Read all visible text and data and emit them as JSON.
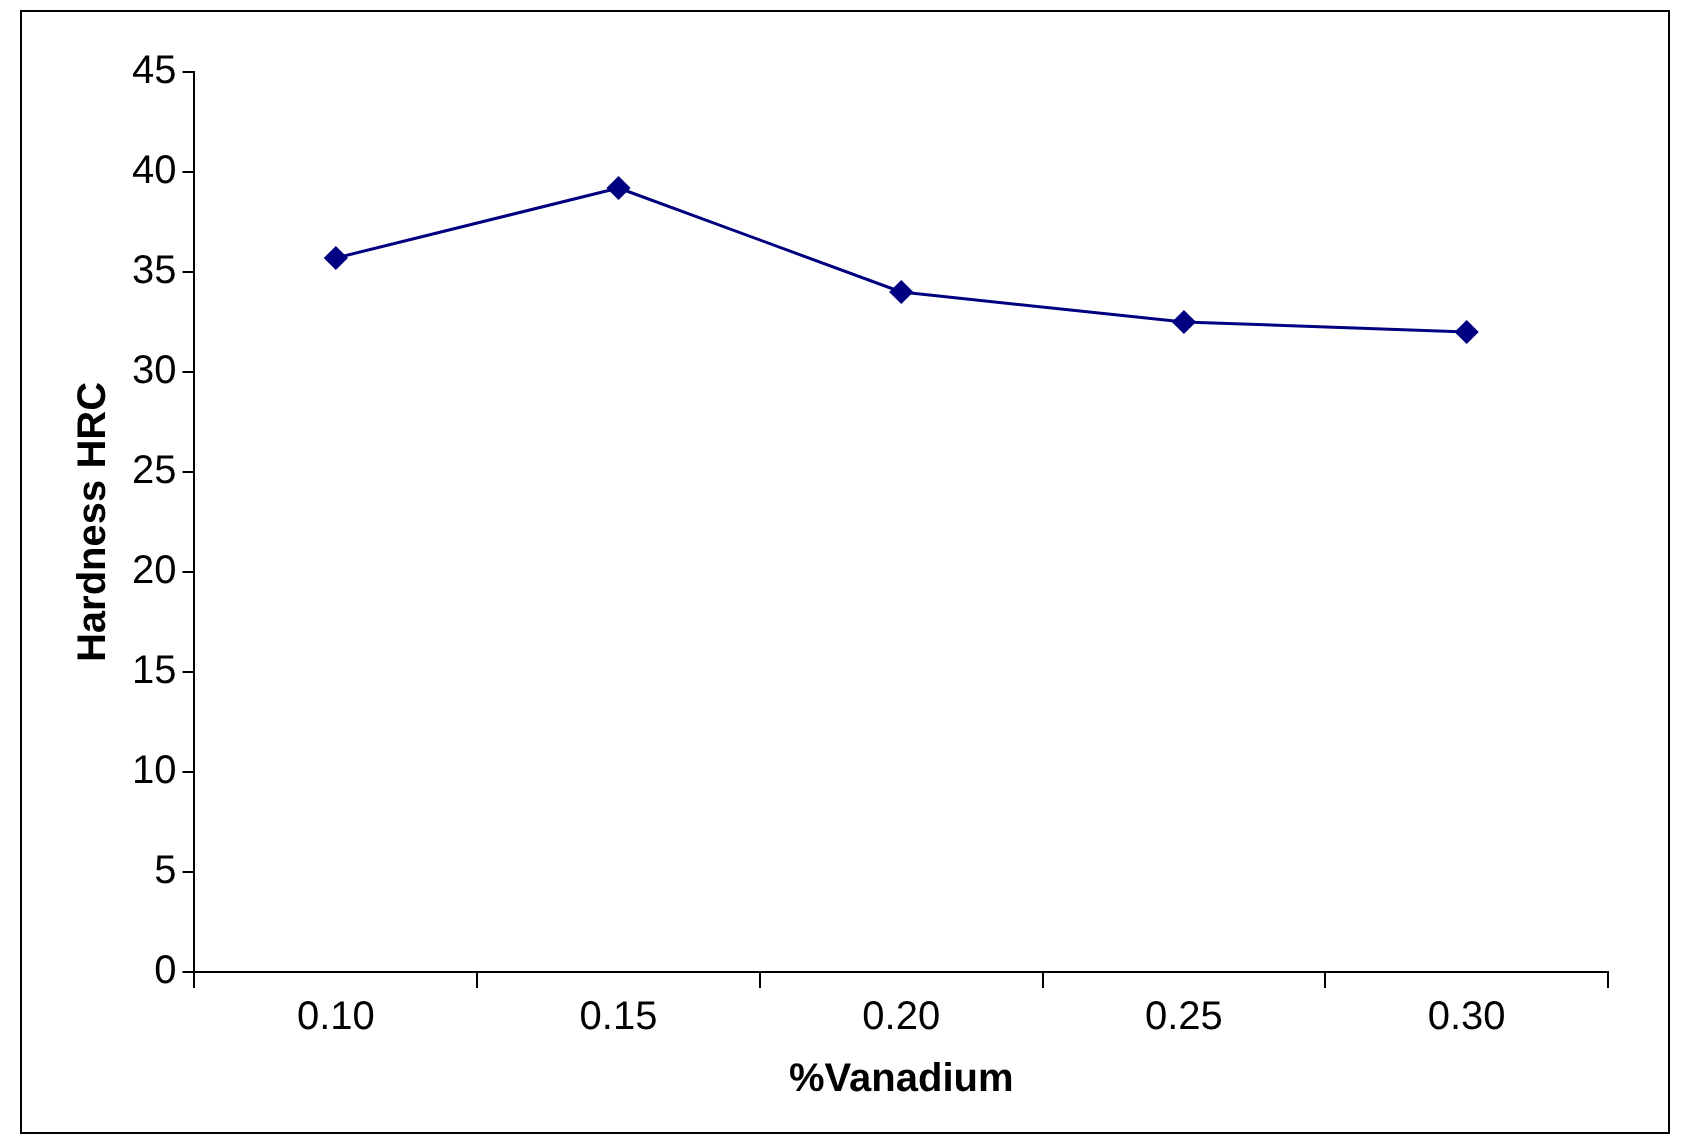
{
  "chart_data": {
    "type": "line",
    "xlabel": "%Vanadium",
    "ylabel": "Hardness HRC",
    "categories": [
      "0.10",
      "0.15",
      "0.20",
      "0.25",
      "0.30"
    ],
    "series": [
      {
        "color": "#000080",
        "values": [
          35.7,
          39.2,
          34.0,
          32.5,
          32.0
        ]
      }
    ],
    "ylim": [
      0,
      45
    ],
    "yticks": [
      0,
      5,
      10,
      15,
      20,
      25,
      30,
      35,
      40,
      45
    ],
    "grid": false,
    "legend": false,
    "marker": "diamond",
    "line_style": "solid"
  }
}
